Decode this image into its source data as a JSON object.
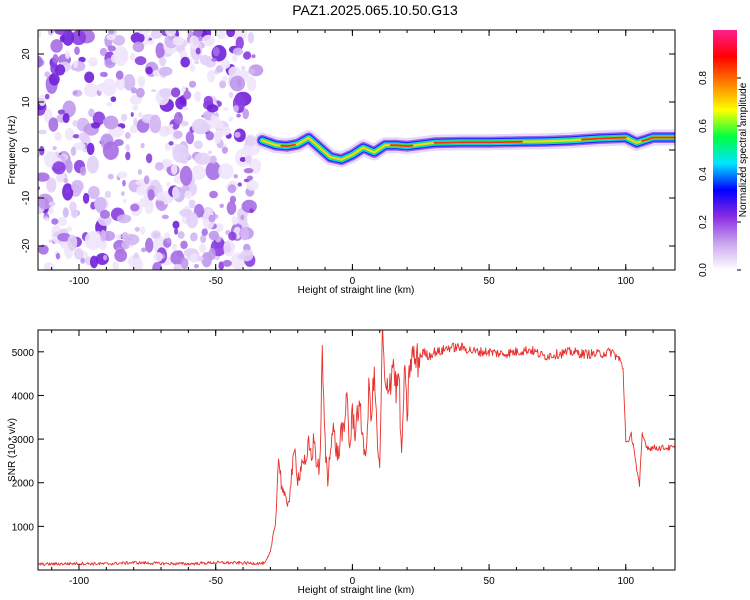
{
  "title": "PAZ1.2025.065.10.50.G13",
  "chart_data": [
    {
      "type": "heatmap",
      "xlabel": "Height of straight line (km)",
      "ylabel": "Frequency (Hz)",
      "xlim": [
        -115,
        118
      ],
      "ylim": [
        -25,
        25
      ],
      "xticks": [
        -100,
        -50,
        0,
        50,
        100
      ],
      "yticks": [
        -20,
        -10,
        0,
        10,
        20
      ],
      "colorbar": {
        "label": "Normalized spectral amplitude",
        "range": [
          0,
          1
        ],
        "ticks": [
          "0.0",
          "0.2",
          "0.4",
          "0.6",
          "0.8"
        ],
        "colors": [
          "#ffffff",
          "#c9a6ef",
          "#8a2be2",
          "#0000ff",
          "#00e5ff",
          "#00ff40",
          "#ffff00",
          "#ff8000",
          "#ff0000",
          "#ff1f8f"
        ]
      },
      "noise_region": {
        "x": [
          -115,
          -33
        ],
        "amplitude": [
          0.0,
          0.15
        ]
      },
      "ridge": {
        "x": [
          -33,
          -28,
          -24,
          -20,
          -16,
          -12,
          -8,
          -4,
          0,
          4,
          8,
          12,
          16,
          20,
          30,
          40,
          50,
          60,
          70,
          80,
          90,
          100,
          104,
          110,
          118
        ],
        "frequency": [
          2.0,
          1.0,
          0.8,
          1.2,
          2.5,
          0.5,
          -1.5,
          -2.0,
          -1.0,
          0.5,
          -0.5,
          1.0,
          1.0,
          0.8,
          1.5,
          1.6,
          1.6,
          1.7,
          1.8,
          2.0,
          2.4,
          2.6,
          1.5,
          2.6,
          2.6
        ]
      },
      "grid": false
    },
    {
      "type": "line",
      "xlabel": "Height of straight line (km)",
      "ylabel": "SNR (10 * v/v)",
      "xlim": [
        -115,
        118
      ],
      "ylim": [
        0,
        5500
      ],
      "xticks": [
        -100,
        -50,
        0,
        50,
        100
      ],
      "yticks": [
        1000,
        2000,
        3000,
        4000,
        5000
      ],
      "color": "#e8302c",
      "series": [
        {
          "x": [
            -115,
            -100,
            -90,
            -80,
            -70,
            -60,
            -50,
            -40,
            -32,
            -30,
            -28,
            -27,
            -26,
            -25,
            -24,
            -23,
            -22,
            -21,
            -20,
            -19,
            -18,
            -17,
            -16,
            -15,
            -14,
            -13,
            -12,
            -11,
            -10,
            -9,
            -8,
            -7,
            -6,
            -5,
            -4,
            -3,
            -2,
            -1,
            0,
            1,
            2,
            3,
            4,
            5,
            6,
            7,
            8,
            9,
            10,
            11,
            12,
            13,
            14,
            15,
            16,
            17,
            18,
            19,
            20,
            21,
            22,
            23,
            24,
            25,
            26,
            28,
            30,
            32,
            35,
            40,
            45,
            50,
            55,
            60,
            65,
            70,
            75,
            80,
            85,
            90,
            95,
            98,
            99,
            100,
            101,
            102,
            103,
            104,
            105,
            106,
            108,
            110,
            115,
            118
          ],
          "y": [
            130,
            150,
            140,
            170,
            150,
            140,
            170,
            160,
            150,
            400,
            1200,
            2600,
            2000,
            1700,
            1500,
            1700,
            2300,
            2700,
            2100,
            2300,
            2600,
            2300,
            2900,
            2600,
            3000,
            2400,
            2300,
            4800,
            2900,
            2000,
            3000,
            3200,
            2800,
            2600,
            3300,
            3000,
            4200,
            2700,
            3600,
            3200,
            3700,
            3500,
            3000,
            2500,
            4100,
            3600,
            4500,
            3100,
            2200,
            5500,
            4000,
            4300,
            4400,
            4800,
            4100,
            4500,
            2500,
            4600,
            3500,
            4700,
            4900,
            4800,
            4800,
            4900,
            5000,
            4900,
            5000,
            5000,
            5100,
            5100,
            5000,
            5000,
            4950,
            5000,
            5050,
            4900,
            4950,
            5000,
            4950,
            4950,
            5000,
            4800,
            4600,
            3000,
            2900,
            3100,
            2800,
            2300,
            1900,
            3100,
            2800,
            2800,
            2800,
            2800
          ]
        }
      ],
      "grid": false
    }
  ]
}
